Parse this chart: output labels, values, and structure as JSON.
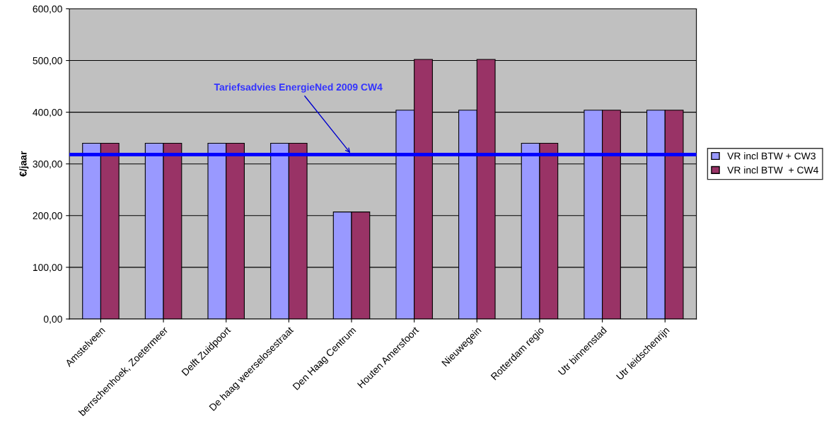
{
  "chart_data": {
    "type": "bar",
    "ylabel": "€/jaar",
    "categories": [
      "Amstelveen",
      "berrschenhoek, Zoetermeer",
      "Delft Zuidpoort",
      "De haag weerselosestraat",
      "Den Haag Centrum",
      "Houten Amersfoort",
      "Nieuwegein",
      "Rotterdam regio",
      "Utr binnenstad",
      "Utr leidschenrijn"
    ],
    "series": [
      {
        "name": "VR incl BTW + CW3",
        "color": "#9999ff",
        "values": [
          340,
          340,
          340,
          340,
          207,
          404,
          404,
          340,
          404,
          404
        ]
      },
      {
        "name": "VR incl BTW  + CW4",
        "color": "#993366",
        "values": [
          340,
          340,
          340,
          340,
          207,
          502,
          502,
          340,
          404,
          404
        ]
      }
    ],
    "ylim": [
      0,
      600
    ],
    "yticks": [
      {
        "value": 0,
        "label": "0,00"
      },
      {
        "value": 100,
        "label": "100,00"
      },
      {
        "value": 200,
        "label": "200,00"
      },
      {
        "value": 300,
        "label": "300,00"
      },
      {
        "value": 400,
        "label": "400,00"
      },
      {
        "value": 500,
        "label": "500,00"
      },
      {
        "value": 600,
        "label": "600,00"
      }
    ],
    "ref_lines": [
      {
        "axis": "y",
        "value": 318,
        "color": "#0000ff"
      }
    ],
    "annotations": [
      {
        "text": "Tariefsadvies EnergieNed 2009 CW4",
        "x": "Den Haag Centrum",
        "y": 318
      }
    ],
    "grid": "y",
    "legend": "right"
  }
}
